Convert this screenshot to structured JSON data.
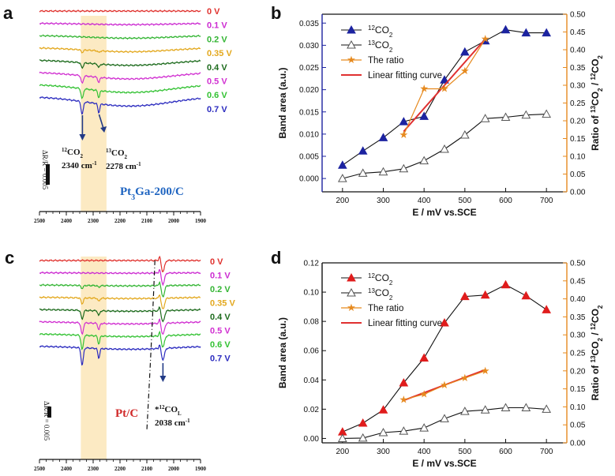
{
  "figure": {
    "panels": {
      "a": "a",
      "b": "b",
      "c": "c",
      "d": "d"
    }
  },
  "colors": {
    "blue": "#1c23a0",
    "black": "#111111",
    "red": "#e01c1c",
    "orange": "#e68a1f",
    "fit_red": "#e03030",
    "band_yellow": "#fbe6b8",
    "band_pink": "#f7c0c4"
  },
  "spectra": [
    {
      "id": "a",
      "voltages": [
        {
          "label": "0 V",
          "color": "#e0322e"
        },
        {
          "label": "0.1 V",
          "color": "#cc2bd1"
        },
        {
          "label": "0.2 V",
          "color": "#33b533"
        },
        {
          "label": "0.35 V",
          "color": "#e3a81e"
        },
        {
          "label": "0.4 V",
          "color": "#1d6b1d"
        },
        {
          "label": "0.5 V",
          "color": "#d130d1"
        },
        {
          "label": "0.6 V",
          "color": "#33c233"
        },
        {
          "label": "0.7 V",
          "color": "#2b2bbf"
        }
      ],
      "x_ticks": [
        "2500",
        "2400",
        "2300",
        "2200",
        "2100",
        "2000",
        "1900"
      ],
      "scale_label": "ΔR/R = 0.005",
      "sample_main": "Pt",
      "sample_sub": "3",
      "sample_rest": "Ga-200/C",
      "annotations": [
        {
          "sup": "12",
          "main": "CO",
          "sub": "2",
          "value": "2340 cm",
          "unit_sup": "-1"
        },
        {
          "sup": "13",
          "main": "CO",
          "sub": "2",
          "value": "2278 cm",
          "unit_sup": "-1"
        }
      ]
    },
    {
      "id": "c",
      "voltages": [
        {
          "label": "0 V",
          "color": "#e0322e"
        },
        {
          "label": "0.1 V",
          "color": "#cc2bd1"
        },
        {
          "label": "0.2 V",
          "color": "#33b533"
        },
        {
          "label": "0.35 V",
          "color": "#e3a81e"
        },
        {
          "label": "0.4 V",
          "color": "#1d6b1d"
        },
        {
          "label": "0.5 V",
          "color": "#d130d1"
        },
        {
          "label": "0.6 V",
          "color": "#33c233"
        },
        {
          "label": "0.7 V",
          "color": "#2b2bbf"
        }
      ],
      "x_ticks": [
        "2500",
        "2400",
        "2300",
        "2200",
        "2100",
        "2000",
        "1900"
      ],
      "scale_label": "ΔR/R = 0.005",
      "sample_main": "Pt/C",
      "sample_sub": "",
      "sample_rest": "",
      "annotations": [
        {
          "pre": "*",
          "sup": "12",
          "main": "CO",
          "sub": "L",
          "value": "2038 cm",
          "unit_sup": "-1"
        }
      ]
    }
  ],
  "chart_data": [
    {
      "id": "b",
      "type": "line",
      "x": [
        200,
        250,
        300,
        350,
        400,
        450,
        500,
        550,
        600,
        650,
        700
      ],
      "xlabel": "E / mV vs.SCE",
      "xlim": [
        150,
        750
      ],
      "x_ticks": [
        200,
        300,
        400,
        500,
        600,
        700
      ],
      "ylabel": "Band area (a.u.)",
      "ylim": [
        -0.003,
        0.037
      ],
      "y_ticks": [
        "0.000",
        "0.005",
        "0.010",
        "0.015",
        "0.020",
        "0.025",
        "0.030",
        "0.035"
      ],
      "y2label_pre": "Ratio of ",
      "y2label_num_sup": "13",
      "y2label_num": "CO",
      "y2label_num_sub": "2",
      "y2label_div": " / ",
      "y2label_den_sup": "12",
      "y2label_den": "CO",
      "y2label_den_sub": "2",
      "y2lim": [
        0,
        0.5
      ],
      "y2_ticks": [
        "0.00",
        "0.05",
        "0.10",
        "0.15",
        "0.20",
        "0.25",
        "0.30",
        "0.35",
        "0.40",
        "0.45",
        "0.50"
      ],
      "series": [
        {
          "name": "12CO2",
          "sup": "12",
          "main": "CO",
          "sub": "2",
          "marker": "triangle-filled",
          "values": [
            0.003,
            0.0062,
            0.0092,
            0.0128,
            0.014,
            0.0222,
            0.0285,
            0.031,
            0.0335,
            0.0328,
            0.0328
          ]
        },
        {
          "name": "13CO2",
          "sup": "13",
          "main": "CO",
          "sub": "2",
          "marker": "triangle-open",
          "values": [
            0.0,
            0.0012,
            0.0015,
            0.0022,
            0.004,
            0.0066,
            0.0098,
            0.0135,
            0.0138,
            0.0143,
            0.0145
          ]
        }
      ],
      "ratio": {
        "name": "The ratio",
        "x": [
          350,
          400,
          450,
          500,
          550
        ],
        "values": [
          0.16,
          0.29,
          0.29,
          0.34,
          0.43
        ]
      },
      "fit": {
        "name": "Linear fitting curve",
        "x": [
          350,
          550
        ],
        "values": [
          0.17,
          0.43
        ]
      }
    },
    {
      "id": "d",
      "type": "line",
      "x": [
        200,
        250,
        300,
        350,
        400,
        450,
        500,
        550,
        600,
        650,
        700
      ],
      "xlabel": "E / mV vs.SCE",
      "xlim": [
        150,
        750
      ],
      "x_ticks": [
        200,
        300,
        400,
        500,
        600,
        700
      ],
      "ylabel": "Band area (a.u.)",
      "ylim": [
        -0.003,
        0.12
      ],
      "y_ticks": [
        "0.00",
        "0.02",
        "0.04",
        "0.06",
        "0.08",
        "0.10",
        "0.12"
      ],
      "y2label_pre": "Ratio of ",
      "y2label_num_sup": "13",
      "y2label_num": "CO",
      "y2label_num_sub": "2",
      "y2label_div": " / ",
      "y2label_den_sup": "12",
      "y2label_den": "CO",
      "y2label_den_sub": "2",
      "y2lim": [
        0,
        0.5
      ],
      "y2_ticks": [
        "0.00",
        "0.05",
        "0.10",
        "0.15",
        "0.20",
        "0.25",
        "0.30",
        "0.35",
        "0.40",
        "0.45",
        "0.50"
      ],
      "series": [
        {
          "name": "12CO2",
          "sup": "12",
          "main": "CO",
          "sub": "2",
          "marker": "triangle-filled",
          "values": [
            0.0045,
            0.0105,
            0.0195,
            0.038,
            0.055,
            0.079,
            0.097,
            0.098,
            0.105,
            0.0975,
            0.088
          ]
        },
        {
          "name": "13CO2",
          "sup": "13",
          "main": "CO",
          "sub": "2",
          "marker": "triangle-open",
          "values": [
            0.0,
            0.0003,
            0.004,
            0.005,
            0.0072,
            0.0135,
            0.0185,
            0.0195,
            0.021,
            0.021,
            0.02
          ]
        }
      ],
      "ratio": {
        "name": "The ratio",
        "x": [
          350,
          400,
          450,
          500,
          550
        ],
        "values": [
          0.12,
          0.135,
          0.16,
          0.18,
          0.2
        ]
      },
      "fit": {
        "name": "Linear fitting curve",
        "x": [
          350,
          550
        ],
        "values": [
          0.118,
          0.203
        ]
      }
    }
  ]
}
